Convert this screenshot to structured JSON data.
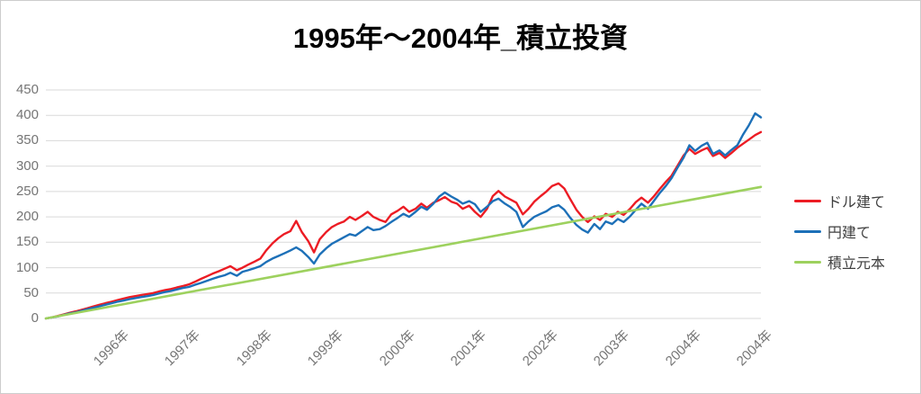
{
  "chart_data": {
    "type": "line",
    "title": "1995年～2004年_積立投資",
    "xlabel": "",
    "ylabel": "",
    "grid": "horizontal",
    "legend_position": "right",
    "y_axis": {
      "range": [
        0,
        450
      ],
      "ticks": [
        0,
        50,
        100,
        150,
        200,
        250,
        300,
        350,
        400,
        450
      ]
    },
    "x_axis": {
      "domain": [
        1995,
        2005
      ],
      "ticks": [
        {
          "label": "1996年",
          "t": 1996
        },
        {
          "label": "1997年",
          "t": 1997
        },
        {
          "label": "1998年",
          "t": 1998
        },
        {
          "label": "1999年",
          "t": 1999
        },
        {
          "label": "2000年",
          "t": 2000
        },
        {
          "label": "2001年",
          "t": 2001
        },
        {
          "label": "2002年",
          "t": 2002
        },
        {
          "label": "2003年",
          "t": 2003
        },
        {
          "label": "2004年",
          "t": 2004
        },
        {
          "label": "2004年",
          "t": 2005
        }
      ]
    },
    "series": [
      {
        "name": "ドル建て",
        "key": "usd",
        "color": "#ec1c24",
        "width": 2.4,
        "points": [
          [
            1995.0,
            0
          ],
          [
            1995.08,
            2
          ],
          [
            1995.17,
            5
          ],
          [
            1995.25,
            8
          ],
          [
            1995.33,
            11
          ],
          [
            1995.42,
            14
          ],
          [
            1995.5,
            17
          ],
          [
            1995.58,
            20
          ],
          [
            1995.67,
            24
          ],
          [
            1995.75,
            27
          ],
          [
            1995.83,
            30
          ],
          [
            1995.92,
            33
          ],
          [
            1996.0,
            36
          ],
          [
            1996.08,
            39
          ],
          [
            1996.17,
            42
          ],
          [
            1996.25,
            44
          ],
          [
            1996.33,
            46
          ],
          [
            1996.42,
            48
          ],
          [
            1996.5,
            50
          ],
          [
            1996.58,
            53
          ],
          [
            1996.67,
            56
          ],
          [
            1996.75,
            58
          ],
          [
            1996.83,
            61
          ],
          [
            1996.92,
            64
          ],
          [
            1997.0,
            67
          ],
          [
            1997.08,
            72
          ],
          [
            1997.17,
            78
          ],
          [
            1997.25,
            83
          ],
          [
            1997.33,
            88
          ],
          [
            1997.42,
            93
          ],
          [
            1997.5,
            98
          ],
          [
            1997.58,
            103
          ],
          [
            1997.67,
            95
          ],
          [
            1997.75,
            100
          ],
          [
            1997.83,
            106
          ],
          [
            1997.92,
            112
          ],
          [
            1998.0,
            118
          ],
          [
            1998.08,
            134
          ],
          [
            1998.17,
            148
          ],
          [
            1998.25,
            158
          ],
          [
            1998.33,
            166
          ],
          [
            1998.42,
            172
          ],
          [
            1998.5,
            192
          ],
          [
            1998.58,
            170
          ],
          [
            1998.67,
            152
          ],
          [
            1998.75,
            130
          ],
          [
            1998.83,
            156
          ],
          [
            1998.92,
            170
          ],
          [
            1999.0,
            180
          ],
          [
            1999.08,
            186
          ],
          [
            1999.17,
            191
          ],
          [
            1999.25,
            200
          ],
          [
            1999.33,
            194
          ],
          [
            1999.42,
            202
          ],
          [
            1999.5,
            210
          ],
          [
            1999.58,
            200
          ],
          [
            1999.67,
            194
          ],
          [
            1999.75,
            190
          ],
          [
            1999.83,
            205
          ],
          [
            1999.92,
            212
          ],
          [
            2000.0,
            220
          ],
          [
            2000.08,
            210
          ],
          [
            2000.17,
            216
          ],
          [
            2000.25,
            226
          ],
          [
            2000.33,
            218
          ],
          [
            2000.42,
            228
          ],
          [
            2000.5,
            233
          ],
          [
            2000.58,
            239
          ],
          [
            2000.67,
            230
          ],
          [
            2000.75,
            226
          ],
          [
            2000.83,
            216
          ],
          [
            2000.92,
            222
          ],
          [
            2001.0,
            210
          ],
          [
            2001.08,
            200
          ],
          [
            2001.17,
            216
          ],
          [
            2001.25,
            241
          ],
          [
            2001.33,
            251
          ],
          [
            2001.42,
            240
          ],
          [
            2001.5,
            234
          ],
          [
            2001.58,
            228
          ],
          [
            2001.67,
            205
          ],
          [
            2001.75,
            216
          ],
          [
            2001.83,
            230
          ],
          [
            2001.92,
            241
          ],
          [
            2002.0,
            250
          ],
          [
            2002.08,
            261
          ],
          [
            2002.17,
            266
          ],
          [
            2002.25,
            256
          ],
          [
            2002.33,
            236
          ],
          [
            2002.42,
            214
          ],
          [
            2002.5,
            200
          ],
          [
            2002.58,
            190
          ],
          [
            2002.67,
            201
          ],
          [
            2002.75,
            194
          ],
          [
            2002.83,
            206
          ],
          [
            2002.92,
            200
          ],
          [
            2003.0,
            210
          ],
          [
            2003.08,
            204
          ],
          [
            2003.17,
            216
          ],
          [
            2003.25,
            229
          ],
          [
            2003.33,
            238
          ],
          [
            2003.42,
            228
          ],
          [
            2003.5,
            240
          ],
          [
            2003.58,
            254
          ],
          [
            2003.67,
            269
          ],
          [
            2003.75,
            281
          ],
          [
            2003.83,
            300
          ],
          [
            2003.92,
            321
          ],
          [
            2004.0,
            334
          ],
          [
            2004.08,
            324
          ],
          [
            2004.17,
            331
          ],
          [
            2004.25,
            336
          ],
          [
            2004.33,
            320
          ],
          [
            2004.42,
            326
          ],
          [
            2004.5,
            316
          ],
          [
            2004.58,
            325
          ],
          [
            2004.67,
            336
          ],
          [
            2004.75,
            344
          ],
          [
            2004.83,
            352
          ],
          [
            2004.92,
            361
          ],
          [
            2005.0,
            367
          ]
        ]
      },
      {
        "name": "円建て",
        "key": "jpy",
        "color": "#1d70b8",
        "width": 2.4,
        "points": [
          [
            1995.0,
            0
          ],
          [
            1995.08,
            2
          ],
          [
            1995.17,
            4
          ],
          [
            1995.25,
            7
          ],
          [
            1995.33,
            10
          ],
          [
            1995.42,
            12
          ],
          [
            1995.5,
            15
          ],
          [
            1995.58,
            18
          ],
          [
            1995.67,
            21
          ],
          [
            1995.75,
            24
          ],
          [
            1995.83,
            27
          ],
          [
            1995.92,
            30
          ],
          [
            1996.0,
            33
          ],
          [
            1996.08,
            35
          ],
          [
            1996.17,
            38
          ],
          [
            1996.25,
            40
          ],
          [
            1996.33,
            42
          ],
          [
            1996.42,
            44
          ],
          [
            1996.5,
            46
          ],
          [
            1996.58,
            49
          ],
          [
            1996.67,
            52
          ],
          [
            1996.75,
            54
          ],
          [
            1996.83,
            57
          ],
          [
            1996.92,
            60
          ],
          [
            1997.0,
            62
          ],
          [
            1997.08,
            66
          ],
          [
            1997.17,
            70
          ],
          [
            1997.25,
            74
          ],
          [
            1997.33,
            78
          ],
          [
            1997.42,
            82
          ],
          [
            1997.5,
            85
          ],
          [
            1997.58,
            90
          ],
          [
            1997.67,
            84
          ],
          [
            1997.75,
            92
          ],
          [
            1997.83,
            95
          ],
          [
            1997.92,
            99
          ],
          [
            1998.0,
            103
          ],
          [
            1998.08,
            111
          ],
          [
            1998.17,
            118
          ],
          [
            1998.25,
            123
          ],
          [
            1998.33,
            128
          ],
          [
            1998.42,
            134
          ],
          [
            1998.5,
            140
          ],
          [
            1998.58,
            133
          ],
          [
            1998.67,
            121
          ],
          [
            1998.75,
            108
          ],
          [
            1998.83,
            126
          ],
          [
            1998.92,
            138
          ],
          [
            1999.0,
            147
          ],
          [
            1999.08,
            153
          ],
          [
            1999.17,
            160
          ],
          [
            1999.25,
            166
          ],
          [
            1999.33,
            163
          ],
          [
            1999.42,
            172
          ],
          [
            1999.5,
            180
          ],
          [
            1999.58,
            174
          ],
          [
            1999.67,
            176
          ],
          [
            1999.75,
            182
          ],
          [
            1999.83,
            190
          ],
          [
            1999.92,
            198
          ],
          [
            2000.0,
            206
          ],
          [
            2000.08,
            200
          ],
          [
            2000.17,
            210
          ],
          [
            2000.25,
            220
          ],
          [
            2000.33,
            214
          ],
          [
            2000.42,
            226
          ],
          [
            2000.5,
            240
          ],
          [
            2000.58,
            248
          ],
          [
            2000.67,
            240
          ],
          [
            2000.75,
            234
          ],
          [
            2000.83,
            226
          ],
          [
            2000.92,
            231
          ],
          [
            2001.0,
            225
          ],
          [
            2001.08,
            210
          ],
          [
            2001.17,
            220
          ],
          [
            2001.25,
            231
          ],
          [
            2001.33,
            236
          ],
          [
            2001.42,
            226
          ],
          [
            2001.5,
            219
          ],
          [
            2001.58,
            210
          ],
          [
            2001.67,
            180
          ],
          [
            2001.75,
            191
          ],
          [
            2001.83,
            200
          ],
          [
            2001.92,
            206
          ],
          [
            2002.0,
            211
          ],
          [
            2002.08,
            219
          ],
          [
            2002.17,
            223
          ],
          [
            2002.25,
            214
          ],
          [
            2002.33,
            199
          ],
          [
            2002.42,
            184
          ],
          [
            2002.5,
            175
          ],
          [
            2002.58,
            169
          ],
          [
            2002.67,
            186
          ],
          [
            2002.75,
            176
          ],
          [
            2002.83,
            191
          ],
          [
            2002.92,
            186
          ],
          [
            2003.0,
            196
          ],
          [
            2003.08,
            190
          ],
          [
            2003.17,
            201
          ],
          [
            2003.25,
            214
          ],
          [
            2003.33,
            226
          ],
          [
            2003.42,
            216
          ],
          [
            2003.5,
            231
          ],
          [
            2003.58,
            246
          ],
          [
            2003.67,
            261
          ],
          [
            2003.75,
            276
          ],
          [
            2003.83,
            296
          ],
          [
            2003.92,
            317
          ],
          [
            2004.0,
            341
          ],
          [
            2004.08,
            330
          ],
          [
            2004.17,
            340
          ],
          [
            2004.25,
            346
          ],
          [
            2004.33,
            324
          ],
          [
            2004.42,
            331
          ],
          [
            2004.5,
            321
          ],
          [
            2004.58,
            331
          ],
          [
            2004.67,
            341
          ],
          [
            2004.75,
            362
          ],
          [
            2004.83,
            380
          ],
          [
            2004.92,
            404
          ],
          [
            2005.0,
            396
          ]
        ]
      },
      {
        "name": "積立元本",
        "key": "principal",
        "color": "#9dd15e",
        "width": 2.6,
        "points": [
          [
            1995.0,
            0
          ],
          [
            2005.0,
            259
          ]
        ]
      }
    ],
    "style": {
      "grid_color": "#d9d9d9",
      "axis_label_color": "#757575",
      "title_color": "#000000",
      "legend_text_color": "#3f3f3f",
      "background": "#ffffff"
    }
  }
}
